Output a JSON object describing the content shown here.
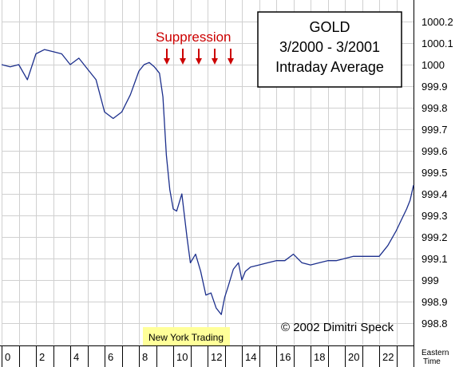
{
  "chart_data": {
    "type": "line",
    "title_lines": [
      "GOLD",
      "3/2000 - 3/2001",
      "Intraday Average"
    ],
    "xlabel_lines": [
      "Eastern",
      "Time"
    ],
    "ylabel": "",
    "xlim": [
      0,
      24
    ],
    "ylim": [
      998.7,
      1000.3
    ],
    "x_ticks": [
      0,
      2,
      4,
      6,
      8,
      10,
      12,
      14,
      16,
      18,
      20,
      22
    ],
    "y_ticks": [
      "998.8",
      "998.9",
      "999",
      "999.1",
      "999.2",
      "999.3",
      "999.4",
      "999.5",
      "999.6",
      "999.7",
      "999.8",
      "999.9",
      "1000",
      "1000.1",
      "1000.2"
    ],
    "grid": true,
    "series": [
      {
        "color": "#1c2f8c",
        "x": [
          0,
          0.5,
          1,
          1.5,
          2,
          2.5,
          3,
          3.5,
          4,
          4.5,
          5,
          5.5,
          6,
          6.5,
          7,
          7.5,
          8,
          8.3,
          8.6,
          8.9,
          9.2,
          9.4,
          9.6,
          9.8,
          10,
          10.2,
          10.5,
          10.8,
          11,
          11.3,
          11.6,
          11.9,
          12.2,
          12.5,
          12.8,
          13.0,
          13.2,
          13.5,
          13.8,
          14.0,
          14.2,
          14.5,
          15,
          15.5,
          16,
          16.5,
          17,
          17.5,
          18,
          18.5,
          19,
          19.5,
          20,
          20.5,
          21,
          21.5,
          22,
          22.5,
          23,
          23.3,
          23.6,
          23.8,
          24
        ],
        "y": [
          1000.0,
          999.99,
          1000.0,
          999.93,
          1000.05,
          1000.07,
          1000.06,
          1000.05,
          1000.0,
          1000.03,
          999.98,
          999.93,
          999.78,
          999.75,
          999.78,
          999.86,
          999.97,
          1000.0,
          1000.01,
          999.99,
          999.96,
          999.85,
          999.58,
          999.42,
          999.33,
          999.32,
          999.4,
          999.2,
          999.08,
          999.12,
          999.04,
          998.93,
          998.94,
          998.87,
          998.84,
          998.92,
          998.97,
          999.05,
          999.08,
          999.0,
          999.04,
          999.06,
          999.07,
          999.08,
          999.09,
          999.09,
          999.12,
          999.08,
          999.07,
          999.08,
          999.09,
          999.09,
          999.1,
          999.11,
          999.11,
          999.11,
          999.11,
          999.16,
          999.23,
          999.28,
          999.33,
          999.37,
          999.44
        ]
      }
    ],
    "annotations": {
      "suppression": "Suppression",
      "arrow_count": 5,
      "arrow_color": "#cc0000",
      "highlight_label": "New York Trading",
      "highlight_color": "#ffff99",
      "copyright": "© 2002 Dimitri Speck"
    }
  }
}
